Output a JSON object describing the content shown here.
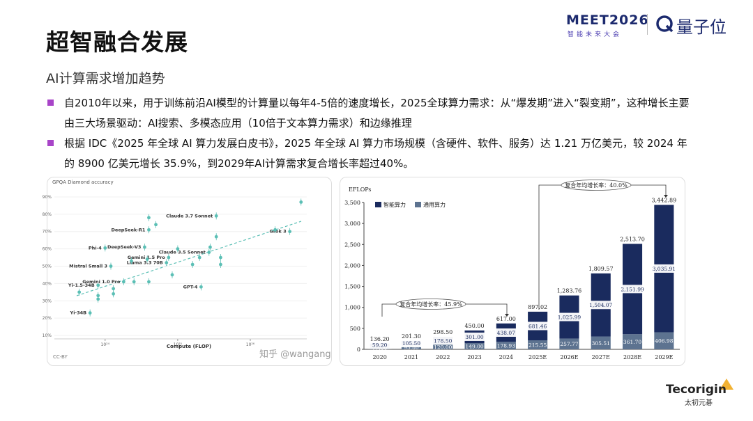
{
  "header": {
    "title": "超智融合发展",
    "subtitle": "AI计算需求增加趋势",
    "event": "MEET2026",
    "event_tagline": "智能未来大会",
    "brand": "量子位"
  },
  "bullets": [
    "自2010年以来，用于训练前沿AI模型的计算量以每年4-5倍的速度增长，2025全球算力需求：从“爆发期”进入“裂变期”，这种增长主要由三大场景驱动：AI搜索、多模态应用（10倍于文本算力需求）和边缘推理",
    "根据 IDC《2025 年全球 AI 算力发展白皮书》，2025 年全球 AI 算力市场规模（含硬件、软件、服务）达 1.21 万亿美元，较 2024 年的 8900 亿美元增长 35.9%，到2029年AI计算需求复合增长率超过40%。"
  ],
  "footer": {
    "brand": "Tecorigin",
    "brand_cn": "太初元碁"
  },
  "watermark": "知乎 @wangang",
  "chart_data": [
    {
      "type": "scatter",
      "title": "GPQA Diamond accuracy",
      "x_label": "Compute (FLOP)",
      "source": "CC-BY",
      "color": "#5bbfb5",
      "xscale": "log",
      "xlim": [
        2e+23,
        6e+26
      ],
      "ylim": [
        8,
        92
      ],
      "xticks": [
        {
          "value": 1e+24,
          "label": "10²⁴"
        },
        {
          "value": 1e+25,
          "label": "10²⁵"
        },
        {
          "value": 1e+26,
          "label": "10²⁶"
        }
      ],
      "yticks": [
        {
          "value": 10,
          "label": "10%"
        },
        {
          "value": 20,
          "label": "20%"
        },
        {
          "value": 30,
          "label": "30%"
        },
        {
          "value": 40,
          "label": "40%"
        },
        {
          "value": 50,
          "label": "50%"
        },
        {
          "value": 60,
          "label": "60%"
        },
        {
          "value": 70,
          "label": "70%"
        },
        {
          "value": 80,
          "label": "80%"
        },
        {
          "value": 90,
          "label": "90%"
        }
      ],
      "x": [
        3.4e+25,
        4e+24,
        1e+24,
        3.5e+24,
        7.5e+24,
        2.7e+25,
        7e+24,
        1.2e+24,
        3.5e+26,
        8e+23,
        1.8e+24,
        2.1e+25,
        6.2e+23,
        5e+26,
        4.4e+23,
        8e+23,
        8e+23,
        1.3e+24,
        1.3e+24,
        2.5e+24,
        4e+24,
        2.3e+24,
        3.8e+24,
        5e+24,
        4e+24,
        1e+25,
        8.4e+24,
        1.6e+25,
        2e+25,
        3.9e+25,
        3.9e+25,
        2.2e+26,
        3.4e+25,
        2.8e+25
      ],
      "y": [
        79,
        71,
        60.5,
        61,
        55,
        58,
        52,
        50,
        70,
        39,
        41,
        38,
        23,
        87,
        35,
        33,
        31,
        34,
        37,
        41,
        41,
        53,
        54,
        74,
        78,
        60,
        45,
        51,
        55,
        55,
        51,
        71,
        67,
        61
      ],
      "point_labels": [
        "Claude 3.7 Sonnet",
        "DeepSeek-R1",
        "Phi-4",
        "DeepSeek-V3",
        "Gemini 1.5 Pro",
        "Claude 3.5 Sonnet",
        "Llama 3.3 70B",
        "Mistral Small 3",
        "Grok 3",
        "Yi-1.5-34B",
        "Gemini 1.0 Pro",
        "GPT-4",
        "Yi-34B",
        null,
        null,
        null,
        null,
        null,
        null,
        null,
        null,
        null,
        null,
        null,
        null,
        null,
        null,
        null,
        null,
        null,
        null,
        null,
        null,
        null
      ]
    },
    {
      "type": "bar",
      "stacked": true,
      "unit": "EFLOPs",
      "categories": [
        "2020",
        "2021",
        "2022",
        "2023",
        "2024",
        "2025E",
        "2026E",
        "2027E",
        "2028E",
        "2029E"
      ],
      "series": [
        {
          "name": "通用算力",
          "color": "#5d7390",
          "values": [
            77.0,
            95.8,
            120.0,
            149.0,
            178.93,
            215.55,
            257.77,
            305.51,
            361.7,
            406.98
          ],
          "value_labels": [
            "77.00",
            "95.80",
            "120.00",
            "149.00",
            "178.93",
            "215.55",
            "257.77",
            "305.51",
            "361.70",
            "406.98"
          ]
        },
        {
          "name": "智能算力",
          "color": "#1a2b5e",
          "values": [
            59.2,
            105.5,
            178.5,
            301.0,
            438.07,
            681.46,
            1025.99,
            1504.07,
            2151.99,
            3035.91
          ],
          "value_labels": [
            "59.20",
            "105.50",
            "178.50",
            "301.00",
            "438.07",
            "681.46",
            "1,025.99",
            "1,504.07",
            "2,151.99",
            "3,035.91"
          ]
        }
      ],
      "total_labels": [
        "136.20",
        "201.30",
        "298.50",
        "450.00",
        "617.00",
        "897.02",
        "1,283.76",
        "1,809.57",
        "2,513.70",
        "3,442.89"
      ],
      "ylim": [
        0,
        3500
      ],
      "yticks": [
        0,
        500,
        {
          "value": 1000,
          "label": "1,000"
        },
        {
          "value": 1500,
          "label": "1,500"
        },
        {
          "value": 2000,
          "label": "2,000"
        },
        {
          "value": 2500,
          "label": "2,500"
        },
        {
          "value": 3000,
          "label": "3,000"
        },
        {
          "value": 3500,
          "label": "3,500"
        }
      ],
      "annotations": [
        "复合年均增长率：45.9%",
        "复合年均增长率：40.0%"
      ]
    }
  ]
}
